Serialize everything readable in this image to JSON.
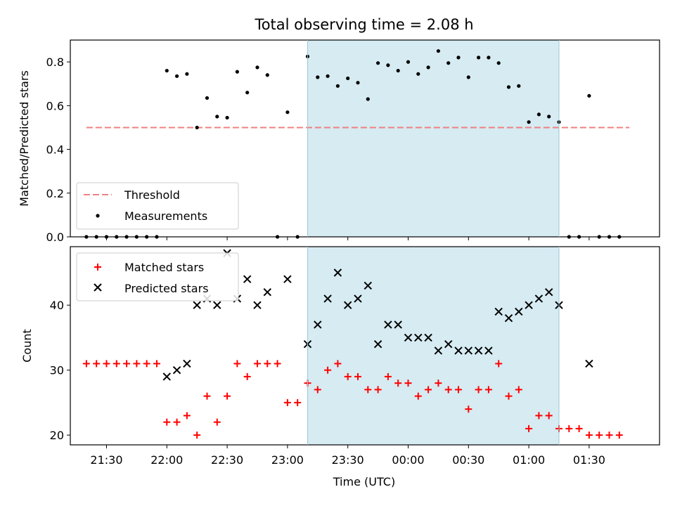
{
  "chart_data": [
    {
      "type": "scatter",
      "title": "Total observing time = 2.08 h",
      "ylabel": "Matched/Predicted stars",
      "xlabel": "",
      "ylim": [
        0,
        0.9
      ],
      "yticks": [
        "0.0",
        "0.2",
        "0.4",
        "0.6",
        "0.8"
      ],
      "ytick_values": [
        0,
        0.2,
        0.4,
        0.6,
        0.8
      ],
      "xlim": [
        "21:12",
        "02:05"
      ],
      "legend_position": "lower-left",
      "shaded_interval": {
        "start": "23:10",
        "end": "01:15",
        "color": "#add8e6"
      },
      "threshold": {
        "name": "Threshold",
        "value": 0.5,
        "x_start": "21:20",
        "x_end": "01:50",
        "color": "#f08080"
      },
      "series": [
        {
          "name": "Measurements",
          "marker": "dot",
          "color": "#000000",
          "x": [
            "21:20",
            "21:25",
            "21:30",
            "21:35",
            "21:40",
            "21:45",
            "21:50",
            "21:55",
            "22:00",
            "22:05",
            "22:10",
            "22:15",
            "22:20",
            "22:25",
            "22:30",
            "22:35",
            "22:40",
            "22:45",
            "22:50",
            "22:55",
            "23:00",
            "23:05",
            "23:10",
            "23:15",
            "23:20",
            "23:25",
            "23:30",
            "23:35",
            "23:40",
            "23:45",
            "23:50",
            "23:55",
            "00:00",
            "00:05",
            "00:10",
            "00:15",
            "00:20",
            "00:25",
            "00:30",
            "00:35",
            "00:40",
            "00:45",
            "00:50",
            "00:55",
            "01:00",
            "01:05",
            "01:10",
            "01:15",
            "01:20",
            "01:25",
            "01:30",
            "01:35",
            "01:40",
            "01:45"
          ],
          "y": [
            0,
            0,
            0,
            0,
            0,
            0,
            0,
            0,
            0.76,
            0.735,
            0.745,
            0.5,
            0.635,
            0.55,
            0.545,
            0.755,
            0.66,
            0.775,
            0.74,
            0,
            0.57,
            0,
            0.825,
            0.73,
            0.735,
            0.69,
            0.725,
            0.705,
            0.63,
            0.795,
            0.785,
            0.76,
            0.8,
            0.745,
            0.775,
            0.85,
            0.795,
            0.82,
            0.73,
            0.82,
            0.82,
            0.795,
            0.685,
            0.69,
            0.525,
            0.56,
            0.55,
            0.525,
            0,
            0,
            0.645,
            0,
            0,
            0
          ]
        }
      ]
    },
    {
      "type": "scatter",
      "title": "",
      "xlabel": "Time (UTC)",
      "ylabel": "Count",
      "ylim": [
        18.5,
        49
      ],
      "yticks": [
        "20",
        "30",
        "40"
      ],
      "ytick_values": [
        20,
        30,
        40
      ],
      "xlim": [
        "21:12",
        "02:05"
      ],
      "xticks": [
        "21:30",
        "22:00",
        "22:30",
        "23:00",
        "23:30",
        "00:00",
        "00:30",
        "01:00",
        "01:30"
      ],
      "legend_position": "upper-left",
      "shaded_interval": {
        "start": "23:10",
        "end": "01:15",
        "color": "#add8e6"
      },
      "series": [
        {
          "name": "Matched stars",
          "marker": "plus",
          "color": "#ff0000",
          "x": [
            "21:20",
            "21:25",
            "21:30",
            "21:35",
            "21:40",
            "21:45",
            "21:50",
            "21:55",
            "22:00",
            "22:05",
            "22:10",
            "22:15",
            "22:20",
            "22:25",
            "22:30",
            "22:35",
            "22:40",
            "22:45",
            "22:50",
            "22:55",
            "23:00",
            "23:05",
            "23:10",
            "23:15",
            "23:20",
            "23:25",
            "23:30",
            "23:35",
            "23:40",
            "23:45",
            "23:50",
            "23:55",
            "00:00",
            "00:05",
            "00:10",
            "00:15",
            "00:20",
            "00:25",
            "00:30",
            "00:35",
            "00:40",
            "00:45",
            "00:50",
            "00:55",
            "01:00",
            "01:05",
            "01:10",
            "01:15",
            "01:20",
            "01:25",
            "01:30",
            "01:35",
            "01:40",
            "01:45"
          ],
          "y": [
            31,
            31,
            31,
            31,
            31,
            31,
            31,
            31,
            22,
            22,
            23,
            20,
            26,
            22,
            26,
            31,
            29,
            31,
            31,
            31,
            25,
            25,
            28,
            27,
            30,
            31,
            29,
            29,
            27,
            27,
            29,
            28,
            28,
            26,
            27,
            28,
            27,
            27,
            24,
            27,
            27,
            31,
            26,
            27,
            21,
            23,
            23,
            21,
            21,
            21,
            20,
            20,
            20,
            20
          ]
        },
        {
          "name": "Predicted stars",
          "marker": "x",
          "color": "#000000",
          "x": [
            "22:00",
            "22:05",
            "22:10",
            "22:15",
            "22:20",
            "22:25",
            "22:30",
            "22:35",
            "22:40",
            "22:45",
            "22:50",
            "23:00",
            "23:10",
            "23:15",
            "23:20",
            "23:25",
            "23:30",
            "23:35",
            "23:40",
            "23:45",
            "23:50",
            "23:55",
            "00:00",
            "00:05",
            "00:10",
            "00:15",
            "00:20",
            "00:25",
            "00:30",
            "00:35",
            "00:40",
            "00:45",
            "00:50",
            "00:55",
            "01:00",
            "01:05",
            "01:10",
            "01:15",
            "01:30"
          ],
          "y": [
            29,
            30,
            31,
            40,
            41,
            40,
            48,
            41,
            44,
            40,
            42,
            44,
            34,
            37,
            41,
            45,
            40,
            41,
            43,
            34,
            37,
            37,
            35,
            35,
            35,
            33,
            34,
            33,
            33,
            33,
            33,
            39,
            38,
            39,
            40,
            41,
            42,
            40,
            31
          ]
        }
      ]
    }
  ]
}
